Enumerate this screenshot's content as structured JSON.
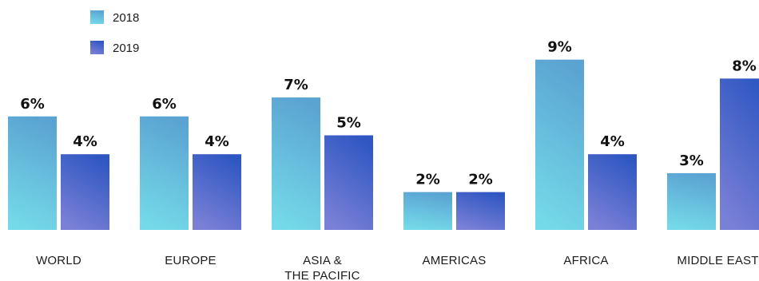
{
  "chart_data": {
    "type": "bar",
    "categories": [
      "WORLD",
      "EUROPE",
      "ASIA &\nTHE PACIFIC",
      "AMERICAS",
      "AFRICA",
      "MIDDLE EAST"
    ],
    "series": [
      {
        "name": "2018",
        "values": [
          6,
          6,
          7,
          2,
          9,
          3
        ],
        "labels": [
          "6%",
          "6%",
          "7%",
          "2%",
          "9%",
          "3%"
        ]
      },
      {
        "name": "2019",
        "values": [
          4,
          4,
          5,
          2,
          4,
          8
        ],
        "labels": [
          "4%",
          "4%",
          "5%",
          "2%",
          "4%",
          "8%"
        ]
      }
    ],
    "title": "",
    "xlabel": "",
    "ylabel": "",
    "ylim": [
      0,
      10
    ],
    "grid": false,
    "legend_position": "top-left",
    "colors": {
      "2018": {
        "top": "#5aa3d2",
        "bottom": "#74d9e8"
      },
      "2019": {
        "top": "#2f57c2",
        "bottom": "#7a80d6"
      }
    }
  }
}
